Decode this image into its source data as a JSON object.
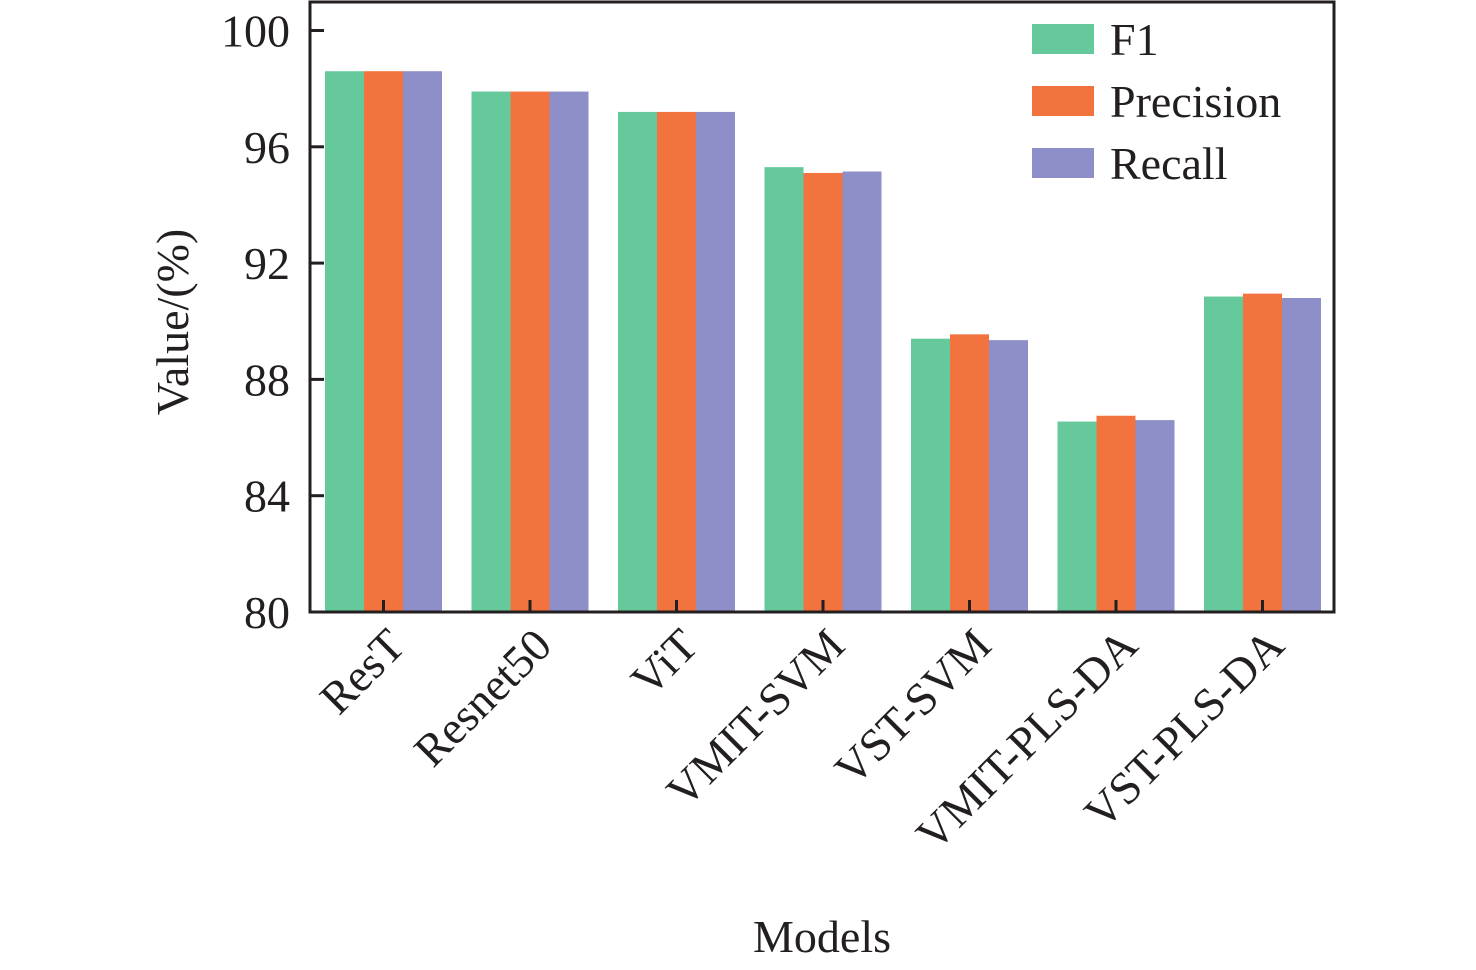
{
  "chart_data": {
    "type": "bar",
    "title": "",
    "xlabel": "Models",
    "ylabel": "Value/(%)",
    "ylim": [
      80,
      101
    ],
    "yticks": [
      80,
      84,
      88,
      92,
      96,
      100
    ],
    "ytick_labels": [
      "80",
      "84",
      "88",
      "92",
      "96",
      "100"
    ],
    "grid": false,
    "legend_position": "top-right",
    "categories": [
      "ResT",
      "Resnet50",
      "ViT",
      "VMIT-SVM",
      "VST-SVM",
      "VMIT-PLS-DA",
      "VST-PLS-DA"
    ],
    "series": [
      {
        "name": "F1",
        "color": "#66c99b",
        "values": [
          98.6,
          97.9,
          97.2,
          95.3,
          89.4,
          86.55,
          90.85
        ]
      },
      {
        "name": "Precision",
        "color": "#f2733d",
        "values": [
          98.6,
          97.9,
          97.2,
          95.1,
          89.55,
          86.75,
          90.95
        ]
      },
      {
        "name": "Recall",
        "color": "#8e8ec8",
        "values": [
          98.6,
          97.9,
          97.2,
          95.15,
          89.35,
          86.6,
          90.8
        ]
      }
    ]
  }
}
